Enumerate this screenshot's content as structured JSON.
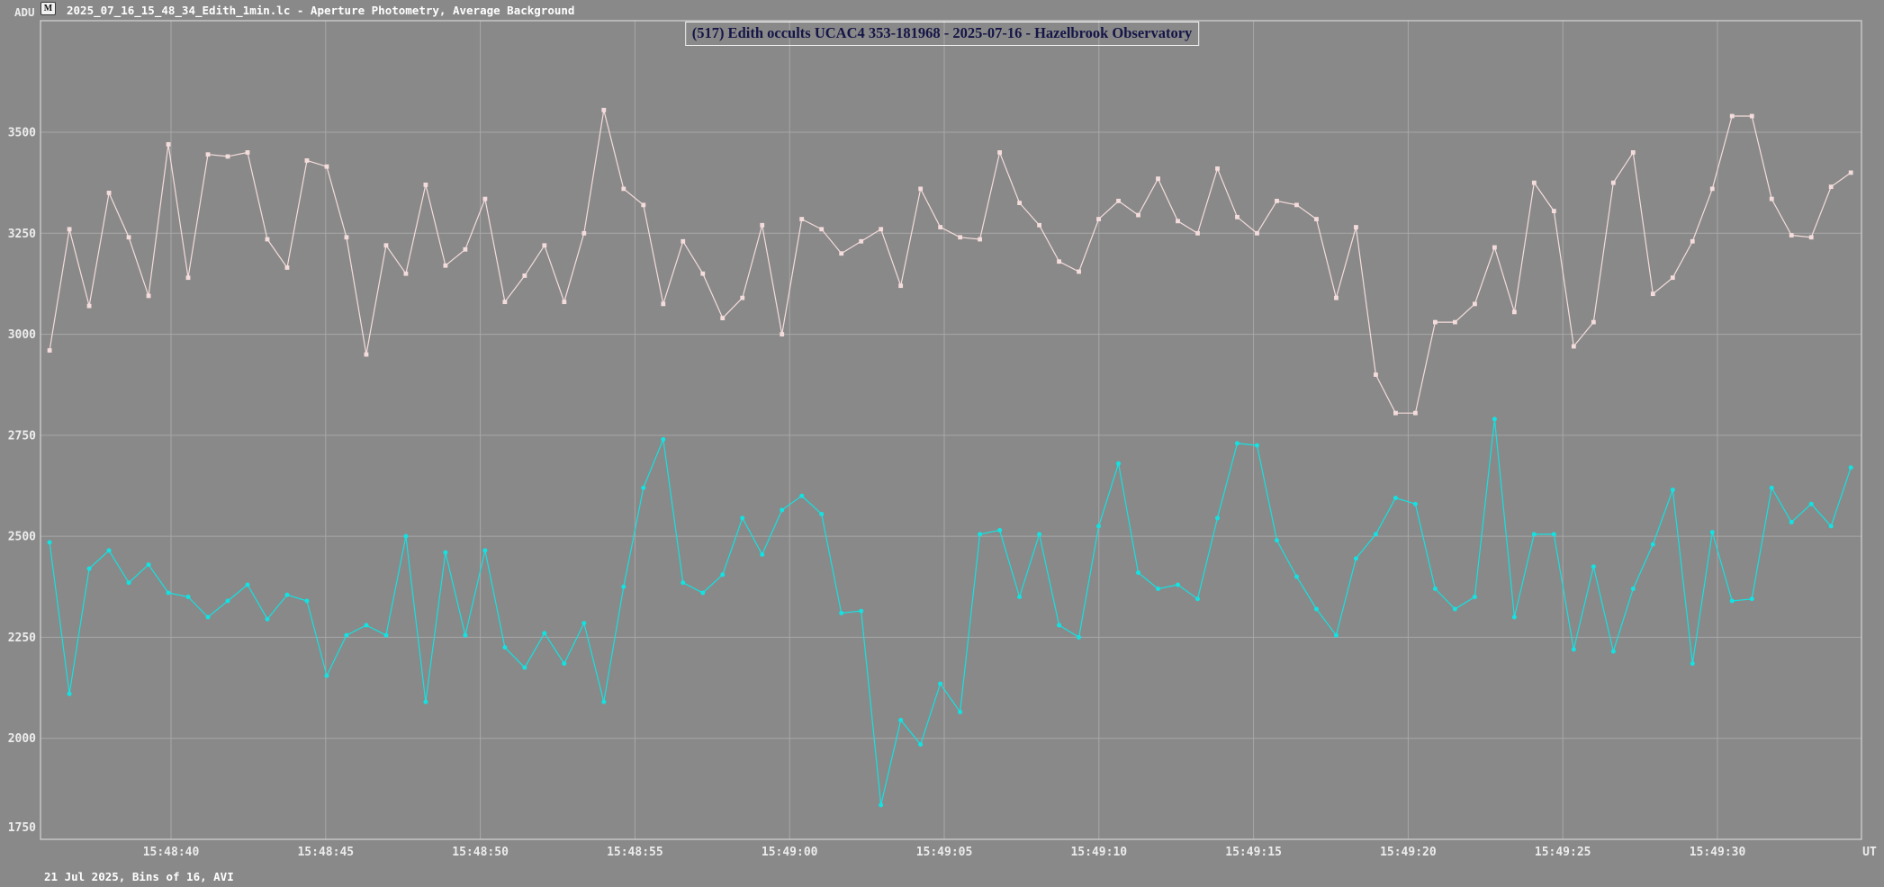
{
  "window": {
    "adu_label": "ADU",
    "app_icon_glyph": "M",
    "header_title": "2025_07_16_15_48_34_Edith_1min.lc - Aperture Photometry, Average Background",
    "footer_note": "21 Jul 2025, Bins of 16, AVI"
  },
  "colors": {
    "background": "#898989",
    "grid": "#a8a8a8",
    "border": "#d4d4d4",
    "axis_text": "#ececec",
    "title_text": "#151547",
    "title_border": "#f2f2f2",
    "header_text": "#ffffff",
    "pink_series": "#f5dcdc",
    "cyan_series": "#12e2e2"
  },
  "chart_data": {
    "type": "line",
    "title": "(517) Edith occults UCAC4 353-181968 - 2025-07-16 - Hazelbrook Observatory",
    "ylabel": "ADU",
    "x_axis_unit": "UT",
    "grid": true,
    "legend": "none",
    "ylim": [
      1750,
      3775
    ],
    "x_range": [
      "15:48:35.8",
      "15:49:34.7"
    ],
    "start_time": "15:48:36.1",
    "cadence_s": 0.64,
    "points_per_series": 92,
    "y_ticks": [
      3500,
      3250,
      3000,
      2750,
      2500,
      2250,
      2000,
      1750
    ],
    "x_ticks": [
      "15:48:40",
      "15:48:45",
      "15:48:50",
      "15:48:55",
      "15:49:00",
      "15:49:05",
      "15:49:10",
      "15:49:15",
      "15:49:20",
      "15:49:25",
      "15:49:30"
    ],
    "series": [
      {
        "name": "pink-series",
        "color": "#f5dcdc",
        "marker": "square",
        "values": [
          2960,
          3260,
          3070,
          3350,
          3240,
          3095,
          3470,
          3140,
          3445,
          3440,
          3450,
          3235,
          3165,
          3430,
          3415,
          3240,
          2950,
          3220,
          3150,
          3370,
          3170,
          3210,
          3335,
          3080,
          3145,
          3220,
          3080,
          3250,
          3555,
          3360,
          3320,
          3075,
          3230,
          3150,
          3040,
          3090,
          3270,
          3000,
          3285,
          3260,
          3200,
          3230,
          3260,
          3120,
          3360,
          3265,
          3240,
          3235,
          3450,
          3325,
          3270,
          3180,
          3155,
          3285,
          3330,
          3295,
          3385,
          3280,
          3250,
          3410,
          3290,
          3250,
          3330,
          3320,
          3285,
          3090,
          3265,
          2900,
          2805,
          2805,
          3030,
          3030,
          3075,
          3215,
          3055,
          3375,
          3305,
          2970,
          3030,
          3375,
          3450,
          3100,
          3140,
          3230,
          3360,
          3540,
          3540,
          3335,
          3245,
          3240,
          3365,
          3400
        ]
      },
      {
        "name": "cyan-series",
        "color": "#12e2e2",
        "marker": "circle",
        "values": [
          2485,
          2110,
          2420,
          2465,
          2385,
          2430,
          2360,
          2350,
          2300,
          2340,
          2380,
          2295,
          2355,
          2340,
          2155,
          2255,
          2280,
          2255,
          2500,
          2090,
          2460,
          2255,
          2465,
          2225,
          2175,
          2260,
          2185,
          2285,
          2090,
          2375,
          2620,
          2740,
          2385,
          2360,
          2405,
          2545,
          2455,
          2565,
          2600,
          2555,
          2310,
          2315,
          1835,
          2045,
          1985,
          2135,
          2065,
          2505,
          2515,
          2350,
          2505,
          2280,
          2250,
          2525,
          2680,
          2410,
          2370,
          2380,
          2345,
          2545,
          2730,
          2725,
          2490,
          2400,
          2320,
          2255,
          2445,
          2505,
          2595,
          2580,
          2370,
          2320,
          2350,
          2790,
          2300,
          2505,
          2505,
          2220,
          2425,
          2215,
          2370,
          2480,
          2615,
          2185,
          2510,
          2340,
          2345,
          2620,
          2535,
          2580,
          2525,
          2670
        ]
      }
    ]
  }
}
